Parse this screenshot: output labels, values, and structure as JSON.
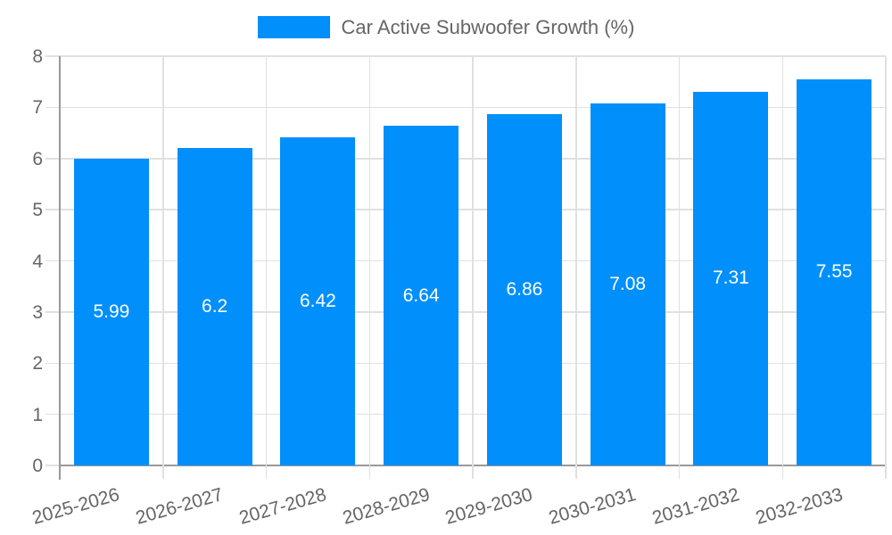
{
  "legend": {
    "label": "Car Active Subwoofer Growth (%)"
  },
  "chart_data": {
    "type": "bar",
    "title": "Car Active Subwoofer Growth (%)",
    "categories": [
      "2025-2026",
      "2026-2027",
      "2027-2028",
      "2028-2029",
      "2029-2030",
      "2030-2031",
      "2031-2032",
      "2032-2033"
    ],
    "values": [
      5.99,
      6.2,
      6.42,
      6.64,
      6.86,
      7.08,
      7.31,
      7.55
    ],
    "value_labels": [
      "5.99",
      "6.2",
      "6.42",
      "6.64",
      "6.86",
      "7.08",
      "7.31",
      "7.55"
    ],
    "xlabel": "",
    "ylabel": "",
    "ylim": [
      0,
      8
    ],
    "ytick_step": 1,
    "ytick_labels": [
      "0",
      "1",
      "2",
      "3",
      "4",
      "5",
      "6",
      "7",
      "8"
    ],
    "grid": true,
    "legend_position": "top",
    "colors": {
      "bar": "#008FFB",
      "grid": "#e0e0e0",
      "axis": "#999999",
      "axis_text": "#666666",
      "legend_text": "#666666",
      "bar_label_text": "#ffffff",
      "background": "#ffffff"
    }
  }
}
